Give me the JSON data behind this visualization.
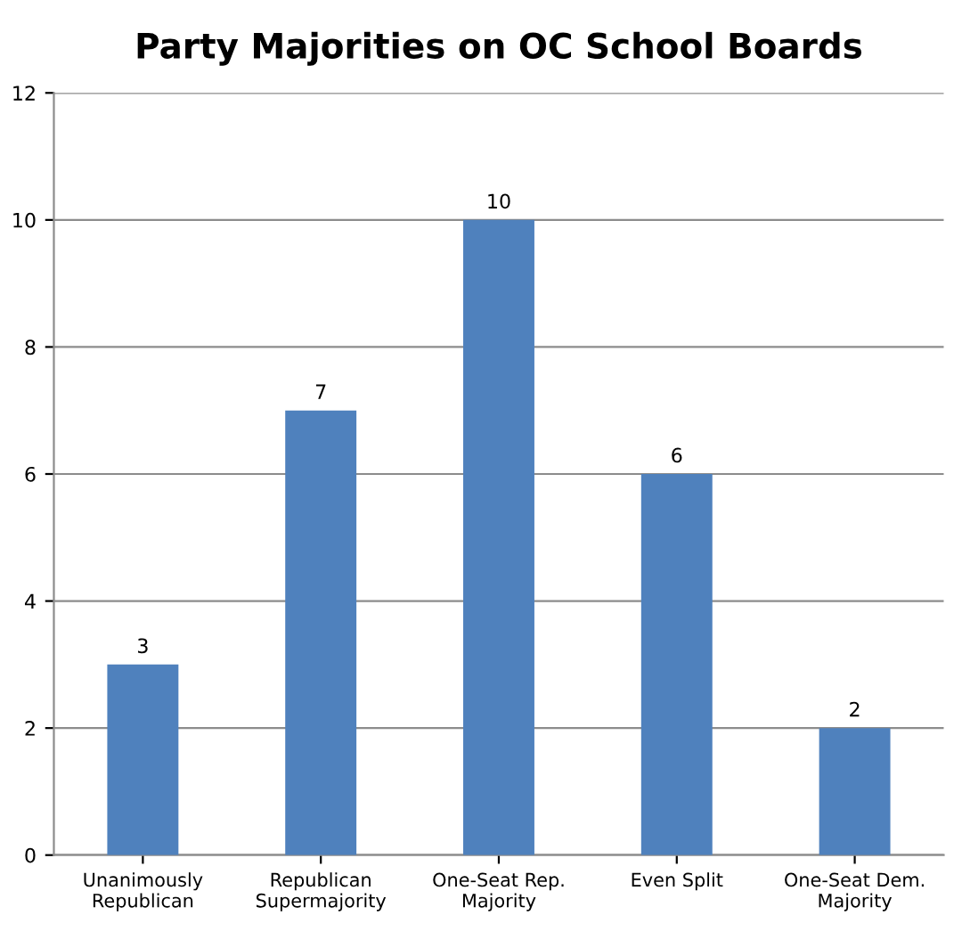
{
  "chart_data": {
    "type": "bar",
    "title": "Party Majorities on OC School Boards",
    "categories": [
      "Unanimously\nRepublican",
      "Republican\nSupermajority",
      "One-Seat Rep.\nMajority",
      "Even Split",
      "One-Seat Dem.\nMajority"
    ],
    "values": [
      3,
      7,
      10,
      6,
      2
    ],
    "color": "#4f81bd",
    "ylim": [
      0,
      12
    ],
    "yticks": [
      0,
      2,
      4,
      6,
      8,
      10,
      12
    ],
    "grid": "y",
    "data_labels": true,
    "legend": false
  }
}
